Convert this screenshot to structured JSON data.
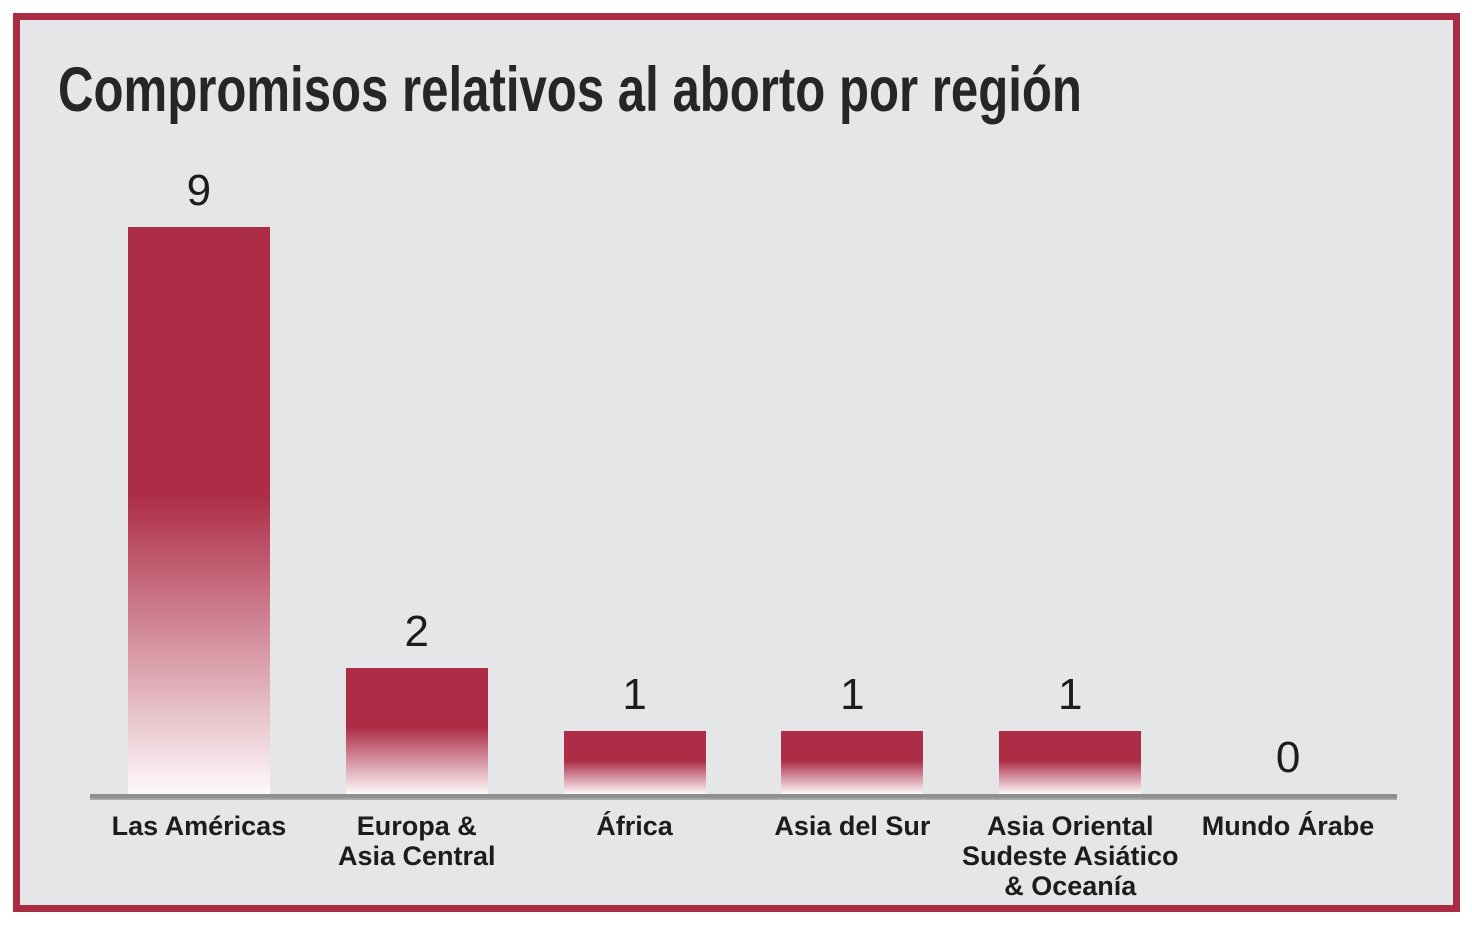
{
  "chart_data": {
    "type": "bar",
    "title": "Compromisos relativos al aborto por región",
    "categories": [
      "Las Américas",
      "Europa &\nAsia Central",
      "África",
      "Asia del Sur",
      "Asia Oriental\nSudeste Asiático\n& Oceanía",
      "Mundo Árabe"
    ],
    "values": [
      9,
      2,
      1,
      1,
      1,
      0
    ],
    "value_labels": [
      "9",
      "2",
      "1",
      "1",
      "1",
      "0"
    ],
    "xlabel": "",
    "ylabel": "",
    "ylim": [
      0,
      9
    ],
    "grid": false,
    "legend": false,
    "bar_color": "#ad2c46",
    "bar_fade_to": "#fdf9fa"
  },
  "frame": {
    "border_color": "#a92c44",
    "background_color": "#e5e6e8",
    "outer_background_color": "#ffffff"
  },
  "axis": {
    "color": "#8e8f91"
  }
}
